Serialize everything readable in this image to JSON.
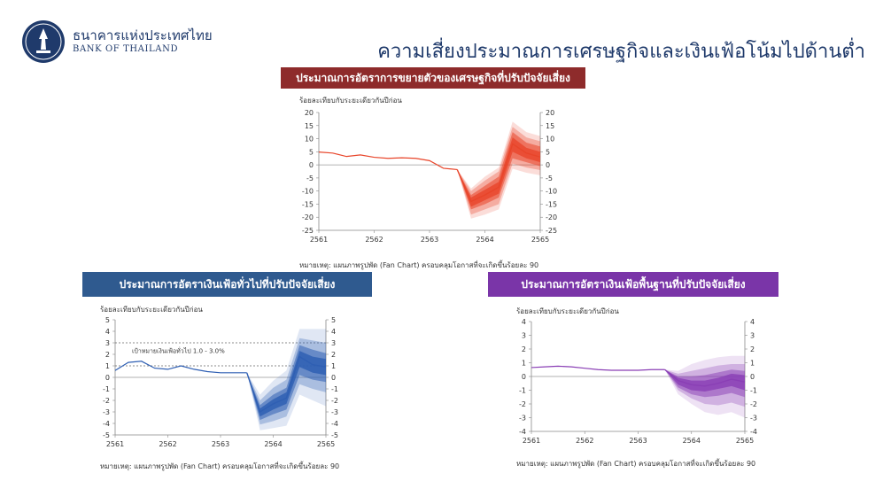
{
  "header": {
    "bank_name_th": "ธนาคารแห่งประเทศไทย",
    "bank_name_en": "BANK OF THAILAND",
    "page_title": "ความเสี่ยงประมาณการเศรษฐกิจและเงินเฟ้อโน้มไปด้านต่ำ"
  },
  "colors": {
    "gdp": "#e8452a",
    "headline": "#2f5fb3",
    "core": "#8a3fb5"
  },
  "chart_data": [
    {
      "type": "area",
      "title": "ประมาณการอัตราการขยายตัวของเศรษฐกิจที่ปรับปัจจัยเสี่ยง",
      "ylabel": "ร้อยละเทียบกับระยะเดียวกันปีก่อน",
      "note": "หมายเหตุ: แผนภาพรูปพัด (Fan Chart) ครอบคลุมโอกาสที่จะเกิดขึ้นร้อยละ 90",
      "ylim": [
        -25,
        20
      ],
      "ytick_step": 5,
      "x_ticks": [
        "2561",
        "2562",
        "2563",
        "2564",
        "2565"
      ],
      "x_range": [
        0,
        16
      ],
      "history": {
        "x": [
          0,
          1,
          2,
          3,
          4,
          5,
          6,
          7,
          8,
          9,
          10
        ],
        "y": [
          4.9,
          4.5,
          3.2,
          3.8,
          2.9,
          2.5,
          2.7,
          2.5,
          1.6,
          -1.3,
          -1.8
        ]
      },
      "fan": {
        "x": [
          10,
          11,
          12,
          13,
          14,
          15,
          16
        ],
        "median": [
          -1.8,
          -14.0,
          -11.5,
          -8.5,
          8.0,
          4.5,
          3.0
        ],
        "bands": [
          {
            "lo": [
              -1.8,
              -20.5,
              -19.0,
              -17.0,
              -1.5,
              -3.0,
              -4.0
            ],
            "hi": [
              -1.8,
              -9.0,
              -4.5,
              -1.0,
              16.5,
              12.5,
              11.0
            ]
          },
          {
            "lo": [
              -1.8,
              -19.0,
              -17.0,
              -15.0,
              0.5,
              -1.0,
              -2.0
            ],
            "hi": [
              -1.8,
              -10.0,
              -6.0,
              -2.5,
              14.5,
              10.5,
              9.0
            ]
          },
          {
            "lo": [
              -1.8,
              -17.0,
              -15.0,
              -12.5,
              2.5,
              1.0,
              -0.5
            ],
            "hi": [
              -1.8,
              -11.5,
              -8.0,
              -4.5,
              12.5,
              8.5,
              7.0
            ]
          },
          {
            "lo": [
              -1.8,
              -16.0,
              -13.5,
              -11.0,
              5.0,
              2.5,
              1.0
            ],
            "hi": [
              -1.8,
              -12.5,
              -9.5,
              -6.5,
              10.5,
              6.5,
              5.0
            ]
          }
        ]
      }
    },
    {
      "type": "area",
      "title": "ประมาณการอัตราเงินเฟ้อทั่วไปที่ปรับปัจจัยเสี่ยง",
      "ylabel": "ร้อยละเทียบกับระยะเดียวกันปีก่อน",
      "note": "หมายเหตุ: แผนภาพรูปพัด (Fan Chart) ครอบคลุมโอกาสที่จะเกิดขึ้นร้อยละ 90",
      "annotation": "เป้าหมายเงินเฟ้อทั่วไป 1.0 - 3.0%",
      "target_range": [
        1,
        3
      ],
      "ylim": [
        -5,
        5
      ],
      "ytick_step": 1,
      "x_ticks": [
        "2561",
        "2562",
        "2563",
        "2564",
        "2565"
      ],
      "x_range": [
        0,
        16
      ],
      "history": {
        "x": [
          0,
          1,
          2,
          3,
          4,
          5,
          6,
          7,
          8,
          9,
          10
        ],
        "y": [
          0.6,
          1.3,
          1.4,
          0.8,
          0.7,
          1.0,
          0.7,
          0.5,
          0.4,
          0.4,
          0.4
        ]
      },
      "fan": {
        "x": [
          10,
          11,
          12,
          13,
          14,
          15,
          16
        ],
        "median": [
          0.4,
          -3.0,
          -2.3,
          -1.8,
          1.8,
          1.1,
          0.9
        ],
        "bands": [
          {
            "lo": [
              0.4,
              -4.6,
              -4.4,
              -4.2,
              -1.5,
              -2.0,
              -2.5
            ],
            "hi": [
              0.4,
              -1.5,
              -0.3,
              0.6,
              4.2,
              4.2,
              4.2
            ]
          },
          {
            "lo": [
              0.4,
              -4.1,
              -3.8,
              -3.4,
              -0.6,
              -1.0,
              -1.3
            ],
            "hi": [
              0.4,
              -2.0,
              -0.9,
              -0.2,
              3.4,
              3.2,
              3.0
            ]
          },
          {
            "lo": [
              0.4,
              -3.7,
              -3.2,
              -2.8,
              0.2,
              -0.2,
              -0.4
            ],
            "hi": [
              0.4,
              -2.4,
              -1.5,
              -0.9,
              2.8,
              2.4,
              2.1
            ]
          },
          {
            "lo": [
              0.4,
              -3.4,
              -2.8,
              -2.3,
              0.9,
              0.4,
              0.2
            ],
            "hi": [
              0.4,
              -2.7,
              -1.9,
              -1.3,
              2.3,
              1.8,
              1.6
            ]
          }
        ]
      }
    },
    {
      "type": "area",
      "title": "ประมาณการอัตราเงินเฟ้อพื้นฐานที่ปรับปัจจัยเสี่ยง",
      "ylabel": "ร้อยละเทียบกับระยะเดียวกันปีก่อน",
      "note": "หมายเหตุ: แผนภาพรูปพัด (Fan Chart) ครอบคลุมโอกาสที่จะเกิดขึ้นร้อยละ 90",
      "ylim": [
        -4,
        4
      ],
      "ytick_step": 1,
      "x_ticks": [
        "2561",
        "2562",
        "2563",
        "2564",
        "2565"
      ],
      "x_range": [
        0,
        16
      ],
      "history": {
        "x": [
          0,
          1,
          2,
          3,
          4,
          5,
          6,
          7,
          8,
          9,
          10
        ],
        "y": [
          0.65,
          0.7,
          0.75,
          0.7,
          0.6,
          0.5,
          0.45,
          0.45,
          0.45,
          0.5,
          0.5
        ]
      },
      "fan": {
        "x": [
          10,
          11,
          12,
          13,
          14,
          15,
          16
        ],
        "median": [
          0.5,
          -0.3,
          -0.6,
          -0.7,
          -0.5,
          -0.2,
          -0.4
        ],
        "bands": [
          {
            "lo": [
              0.5,
              -1.3,
              -2.0,
              -2.6,
              -2.8,
              -2.6,
              -3.0
            ],
            "hi": [
              0.5,
              0.4,
              0.9,
              1.2,
              1.4,
              1.5,
              1.5
            ]
          },
          {
            "lo": [
              0.5,
              -1.0,
              -1.6,
              -2.0,
              -2.1,
              -1.9,
              -2.2
            ],
            "hi": [
              0.5,
              0.2,
              0.4,
              0.6,
              0.8,
              0.9,
              0.9
            ]
          },
          {
            "lo": [
              0.5,
              -0.8,
              -1.3,
              -1.5,
              -1.4,
              -1.2,
              -1.5
            ],
            "hi": [
              0.5,
              0.0,
              0.0,
              0.1,
              0.3,
              0.5,
              0.4
            ]
          },
          {
            "lo": [
              0.5,
              -0.6,
              -1.0,
              -1.1,
              -0.9,
              -0.7,
              -1.0
            ],
            "hi": [
              0.5,
              -0.1,
              -0.3,
              -0.3,
              -0.1,
              0.2,
              0.1
            ]
          }
        ]
      }
    }
  ]
}
